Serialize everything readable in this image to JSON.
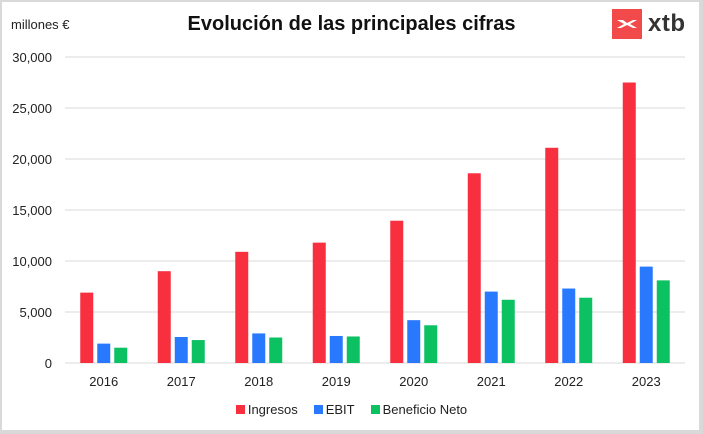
{
  "header": {
    "unit_label": "millones €",
    "title": "Evolución de las principales cifras",
    "brand": "xtb"
  },
  "colors": {
    "ingresos": "#f72f3f",
    "ebit": "#2979ff",
    "beneficio": "#0cc162",
    "grid": "#d9d9d9",
    "brand": "#f24a4a"
  },
  "chart_data": {
    "type": "bar",
    "title": "Evolución de las principales cifras",
    "xlabel": "",
    "ylabel": "millones €",
    "ylim": [
      0,
      30000
    ],
    "yticks": [
      0,
      5000,
      10000,
      15000,
      20000,
      25000,
      30000
    ],
    "ytick_labels": [
      "0",
      "5,000",
      "10,000",
      "15,000",
      "20,000",
      "25,000",
      "30,000"
    ],
    "grid": true,
    "legend_position": "bottom",
    "categories": [
      "2016",
      "2017",
      "2018",
      "2019",
      "2020",
      "2021",
      "2022",
      "2023"
    ],
    "series": [
      {
        "name": "Ingresos",
        "color": "#f72f3f",
        "values": [
          6900,
          9000,
          10900,
          11800,
          13950,
          18600,
          21100,
          27500
        ]
      },
      {
        "name": "EBIT",
        "color": "#2979ff",
        "values": [
          1900,
          2550,
          2900,
          2650,
          4200,
          7000,
          7300,
          9450
        ]
      },
      {
        "name": "Beneficio Neto",
        "color": "#0cc162",
        "values": [
          1500,
          2250,
          2500,
          2600,
          3700,
          6200,
          6400,
          8100
        ]
      }
    ]
  }
}
